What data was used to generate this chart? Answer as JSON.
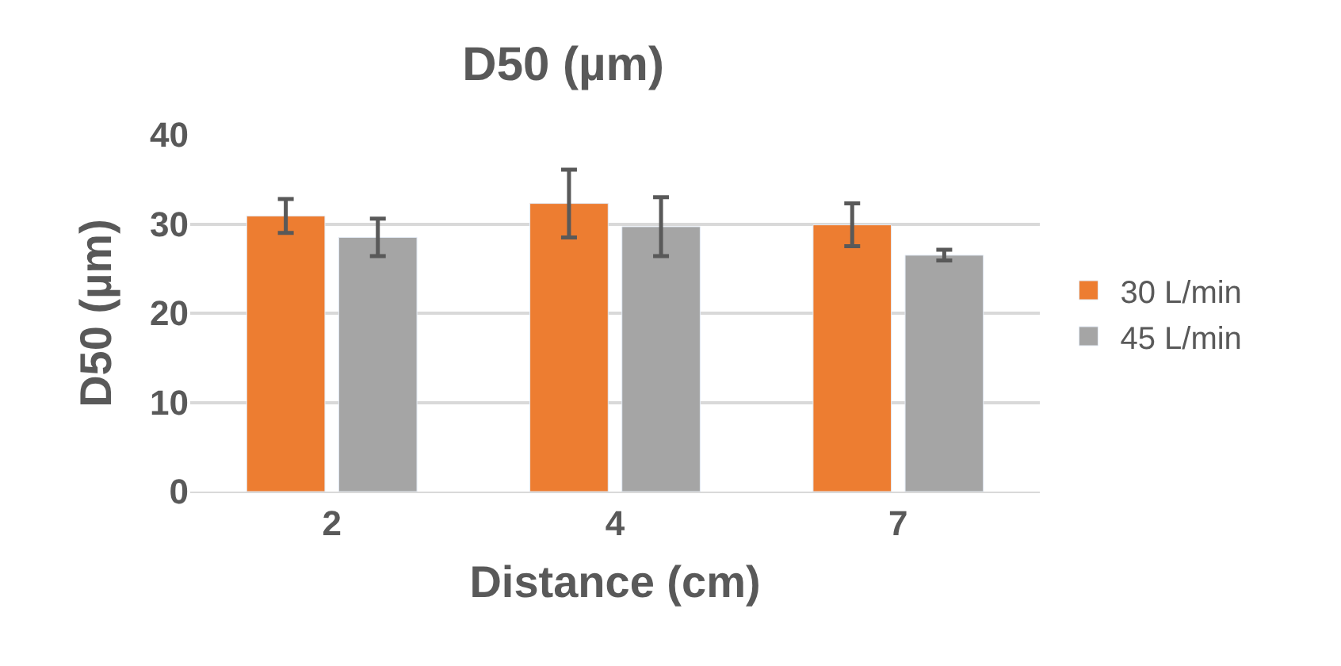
{
  "chart_data": {
    "type": "bar",
    "title": "D50 (µm)",
    "xlabel": "Distance (cm)",
    "ylabel": "D50 (µm)",
    "categories": [
      "2",
      "4",
      "7"
    ],
    "series": [
      {
        "name": "30 L/min",
        "color": "#ed7d31",
        "values": [
          30.9,
          32.3,
          29.9
        ],
        "errors": [
          1.9,
          3.8,
          2.4
        ]
      },
      {
        "name": "45 L/min",
        "color": "#a5a5a5",
        "values": [
          28.5,
          29.7,
          26.5
        ],
        "errors": [
          2.1,
          3.3,
          0.6
        ]
      }
    ],
    "ylim": [
      0,
      40
    ],
    "yticks": [
      0,
      10,
      20,
      30,
      40
    ],
    "grid": "y",
    "legend": "right"
  }
}
